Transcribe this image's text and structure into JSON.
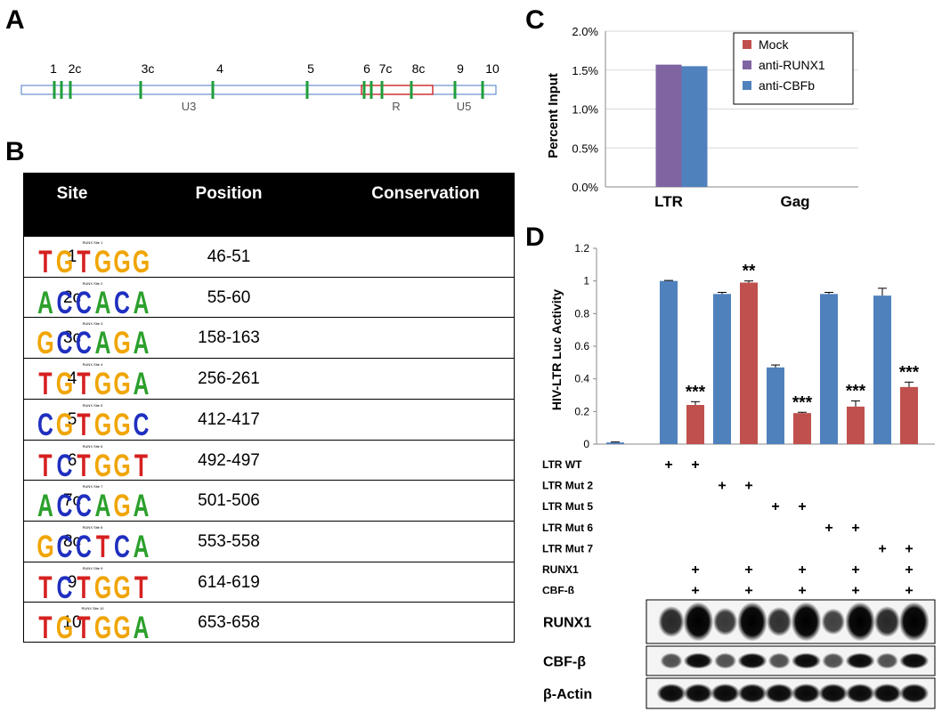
{
  "figure": {
    "panel_labels": {
      "a": "A",
      "b": "B",
      "c": "C",
      "d": "D"
    }
  },
  "panel_a": {
    "site_labels": [
      "1",
      "2c",
      "3c",
      "4",
      "5",
      "6",
      "7c",
      "8c",
      "9",
      "10"
    ],
    "region_labels": [
      "U3",
      "R",
      "U5"
    ],
    "colors": {
      "bar": "#4a78c4",
      "site": "#1f9e3a",
      "r_box": "#d03030"
    }
  },
  "panel_b": {
    "headers": {
      "site": "Site",
      "position": "Position",
      "conservation": "Conservation"
    },
    "rows": [
      {
        "site": "1",
        "position": "46-51",
        "logo_title": "RUNX Site 1",
        "motif": [
          "T",
          "G",
          "T",
          "G",
          "G",
          "G"
        ]
      },
      {
        "site": "2c",
        "position": "55-60",
        "logo_title": "RUNX Site 2",
        "motif": [
          "A",
          "C",
          "C",
          "A",
          "C",
          "A"
        ]
      },
      {
        "site": "3c",
        "position": "158-163",
        "logo_title": "RUNX Site 3",
        "motif": [
          "G",
          "C",
          "C",
          "A",
          "G",
          "A"
        ]
      },
      {
        "site": "4",
        "position": "256-261",
        "logo_title": "RUNX Site 4",
        "motif": [
          "T",
          "G",
          "T",
          "G",
          "G",
          "A"
        ]
      },
      {
        "site": "5",
        "position": "412-417",
        "logo_title": "RUNX Site 5",
        "motif": [
          "C",
          "G",
          "T",
          "G",
          "G",
          "C"
        ]
      },
      {
        "site": "6",
        "position": "492-497",
        "logo_title": "RUNX Site 6",
        "motif": [
          "T",
          "C",
          "T",
          "G",
          "G",
          "T"
        ]
      },
      {
        "site": "7c",
        "position": "501-506",
        "logo_title": "RUNX Site 7",
        "motif": [
          "A",
          "C",
          "C",
          "A",
          "G",
          "A"
        ]
      },
      {
        "site": "8c",
        "position": "553-558",
        "logo_title": "RUNX Site 8",
        "motif": [
          "G",
          "C",
          "C",
          "T",
          "C",
          "A"
        ]
      },
      {
        "site": "9",
        "position": "614-619",
        "logo_title": "RUNX Site 9",
        "motif": [
          "T",
          "C",
          "T",
          "G",
          "G",
          "T"
        ]
      },
      {
        "site": "10",
        "position": "653-658",
        "logo_title": "RUNX Site 10",
        "motif": [
          "T",
          "G",
          "T",
          "G",
          "G",
          "A"
        ]
      }
    ],
    "nucleotide_colors": {
      "A": "#2ca02c",
      "C": "#1f2fbf",
      "G": "#f0a500",
      "T": "#d62020"
    }
  },
  "chart_data": [
    {
      "type": "bar",
      "panel": "C",
      "ylabel": "Percent Input",
      "categories": [
        "LTR",
        "Gag"
      ],
      "yticks": [
        "0.0%",
        "0.5%",
        "1.0%",
        "1.5%",
        "2.0%"
      ],
      "ylim": [
        0,
        2.0
      ],
      "legend_position": "top-right",
      "series": [
        {
          "name": "Mock",
          "values": [
            0.0,
            0.0
          ],
          "color": "#c0504d"
        },
        {
          "name": "anti-RUNX1",
          "values": [
            1.57,
            0.0
          ],
          "color": "#8064a2"
        },
        {
          "name": "anti-CBFb",
          "values": [
            1.55,
            0.0
          ],
          "color": "#4f81bd"
        }
      ]
    },
    {
      "type": "bar",
      "panel": "D",
      "ylabel": "HIV-LTR Luc Activity",
      "yticks": [
        "0",
        "0.2",
        "0.4",
        "0.6",
        "0.8",
        "1",
        "1.2"
      ],
      "ylim": [
        0,
        1.2
      ],
      "values": [
        0.01,
        1.0,
        0.24,
        0.92,
        0.99,
        0.47,
        0.19,
        0.92,
        0.23,
        0.91,
        0.35
      ],
      "errors": [
        0.003,
        0.003,
        0.02,
        0.01,
        0.01,
        0.015,
        0.005,
        0.01,
        0.035,
        0.045,
        0.03
      ],
      "colors": [
        "#4f81bd",
        "#4f81bd",
        "#c0504d",
        "#4f81bd",
        "#c0504d",
        "#4f81bd",
        "#c0504d",
        "#4f81bd",
        "#c0504d",
        "#4f81bd",
        "#c0504d"
      ],
      "significance": [
        "",
        "",
        "***",
        "",
        "**",
        "",
        "***",
        "",
        "***",
        "",
        "***"
      ],
      "conditions": [
        {
          "label": "LTR WT",
          "marks": [
            false,
            true,
            true,
            false,
            false,
            false,
            false,
            false,
            false,
            false,
            false
          ]
        },
        {
          "label": "LTR Mut 2",
          "marks": [
            false,
            false,
            false,
            true,
            true,
            false,
            false,
            false,
            false,
            false,
            false
          ]
        },
        {
          "label": "LTR Mut 5",
          "marks": [
            false,
            false,
            false,
            false,
            false,
            true,
            true,
            false,
            false,
            false,
            false
          ]
        },
        {
          "label": "LTR Mut 6",
          "marks": [
            false,
            false,
            false,
            false,
            false,
            false,
            false,
            true,
            true,
            false,
            false
          ]
        },
        {
          "label": "LTR Mut 7",
          "marks": [
            false,
            false,
            false,
            false,
            false,
            false,
            false,
            false,
            false,
            true,
            true
          ]
        },
        {
          "label": "RUNX1",
          "marks": [
            false,
            false,
            true,
            false,
            true,
            false,
            true,
            false,
            true,
            false,
            true
          ]
        },
        {
          "label": "CBF-β",
          "marks": [
            false,
            false,
            true,
            false,
            true,
            false,
            true,
            false,
            true,
            false,
            true
          ]
        }
      ],
      "plus_symbol": "+"
    }
  ],
  "western_blot": {
    "rows": [
      {
        "label": "RUNX1",
        "band_strength": [
          0.75,
          1.0,
          0.65,
          1.0,
          0.7,
          1.0,
          0.6,
          1.0,
          0.75,
          1.0
        ]
      },
      {
        "label": "CBF-β",
        "band_strength": [
          0.5,
          0.95,
          0.5,
          0.95,
          0.5,
          0.95,
          0.5,
          0.95,
          0.5,
          0.95
        ]
      },
      {
        "label": "β-Actin",
        "band_strength": [
          0.95,
          0.95,
          0.95,
          0.95,
          0.95,
          0.95,
          0.95,
          0.95,
          0.95,
          0.95
        ]
      }
    ]
  }
}
